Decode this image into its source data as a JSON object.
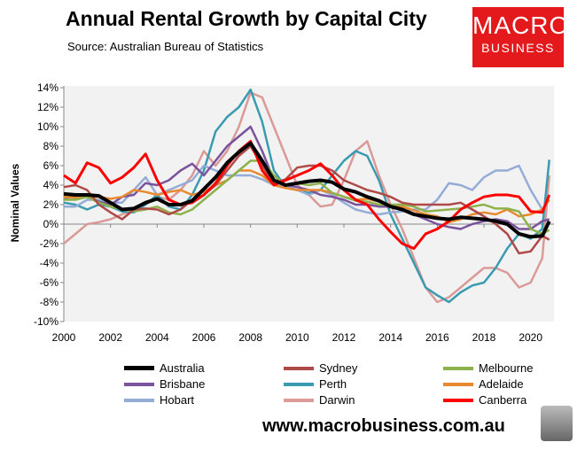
{
  "chart_data": {
    "type": "line",
    "title": "Annual Rental Growth by Capital City",
    "subtitle": "Source: Australian Bureau of Statistics",
    "ylabel": "Nominal Values",
    "xlabel": "",
    "ylim": [
      -10,
      14
    ],
    "xlim": [
      2000,
      2021
    ],
    "yticks": [
      "14%",
      "12%",
      "10%",
      "8%",
      "6%",
      "4%",
      "2%",
      "0%",
      "-2%",
      "-4%",
      "-6%",
      "-8%",
      "-10%"
    ],
    "xticks": [
      "2000",
      "2002",
      "2004",
      "2006",
      "2008",
      "2010",
      "2012",
      "2014",
      "2016",
      "2018",
      "2020"
    ],
    "legend_position": "bottom",
    "x": [
      2000,
      2000.5,
      2001,
      2001.5,
      2002,
      2002.5,
      2003,
      2003.5,
      2004,
      2004.5,
      2005,
      2005.5,
      2006,
      2006.5,
      2007,
      2007.5,
      2008,
      2008.5,
      2009,
      2009.5,
      2010,
      2010.5,
      2011,
      2011.5,
      2012,
      2012.5,
      2013,
      2013.5,
      2014,
      2014.5,
      2015,
      2015.5,
      2016,
      2016.5,
      2017,
      2017.5,
      2018,
      2018.5,
      2019,
      2019.5,
      2020,
      2020.5,
      2020.8
    ],
    "series": [
      {
        "name": "Australia",
        "color": "#000000",
        "width": 4,
        "values": [
          3.1,
          3.0,
          3.0,
          2.9,
          2.2,
          1.5,
          1.6,
          2.2,
          2.6,
          2.0,
          2.0,
          2.4,
          3.6,
          4.8,
          6.3,
          7.4,
          8.3,
          6.5,
          4.5,
          4.0,
          4.2,
          4.4,
          4.5,
          4.3,
          3.6,
          3.3,
          2.8,
          2.4,
          1.8,
          1.5,
          1.0,
          0.8,
          0.6,
          0.5,
          0.7,
          0.6,
          0.5,
          0.3,
          0.0,
          -1.0,
          -1.3,
          -1.2,
          0.3
        ]
      },
      {
        "name": "Sydney",
        "color": "#b04a48",
        "width": 2.5,
        "values": [
          3.8,
          4.0,
          3.5,
          2.0,
          1.2,
          0.5,
          1.5,
          1.6,
          1.5,
          1.0,
          1.5,
          2.5,
          3.0,
          4.0,
          5.5,
          7.0,
          8.0,
          6.0,
          4.2,
          4.6,
          5.8,
          6.0,
          6.0,
          5.5,
          4.5,
          4.0,
          3.5,
          3.2,
          2.8,
          2.2,
          2.0,
          2.0,
          2.0,
          2.0,
          2.2,
          1.5,
          0.8,
          0.0,
          -1.0,
          -3.0,
          -2.8,
          -1.2,
          -1.6
        ]
      },
      {
        "name": "Melbourne",
        "color": "#8db24c",
        "width": 2.5,
        "values": [
          2.5,
          2.5,
          2.8,
          2.2,
          1.8,
          1.5,
          1.3,
          1.5,
          1.8,
          1.2,
          1.0,
          1.5,
          2.5,
          3.5,
          4.5,
          5.5,
          6.5,
          6.5,
          5.0,
          4.0,
          4.2,
          4.0,
          4.2,
          3.2,
          2.8,
          2.4,
          2.3,
          2.0,
          2.0,
          2.0,
          1.8,
          1.3,
          1.4,
          1.5,
          1.6,
          1.8,
          2.0,
          1.6,
          1.6,
          1.3,
          -0.5,
          -1.0,
          -0.6
        ]
      },
      {
        "name": "Brisbane",
        "color": "#7a539c",
        "width": 2.5,
        "values": [
          2.5,
          3.0,
          2.8,
          2.3,
          2.0,
          2.8,
          3.0,
          4.2,
          4.0,
          4.5,
          5.5,
          6.2,
          5.0,
          6.5,
          8.0,
          9.0,
          10.0,
          7.5,
          4.5,
          4.0,
          3.8,
          3.5,
          3.0,
          2.8,
          2.5,
          2.0,
          2.0,
          1.8,
          1.8,
          1.5,
          1.0,
          0.5,
          0.0,
          -0.3,
          -0.5,
          0.0,
          0.3,
          0.5,
          0.3,
          -0.5,
          -0.5,
          0.3,
          0.5
        ]
      },
      {
        "name": "Perth",
        "color": "#3a9bb0",
        "width": 2.5,
        "values": [
          2.2,
          2.0,
          1.5,
          2.0,
          1.8,
          1.3,
          1.2,
          2.0,
          3.0,
          1.8,
          1.5,
          3.0,
          5.5,
          9.5,
          11.0,
          12.0,
          13.8,
          10.5,
          5.5,
          3.8,
          3.5,
          3.2,
          3.5,
          5.0,
          6.5,
          7.5,
          7.0,
          4.5,
          1.0,
          -1.5,
          -4.0,
          -6.5,
          -7.3,
          -8.0,
          -7.0,
          -6.3,
          -6.0,
          -4.5,
          -2.5,
          -1.0,
          -1.5,
          -0.5,
          6.6
        ]
      },
      {
        "name": "Adelaide",
        "color": "#e8892f",
        "width": 2.5,
        "values": [
          2.8,
          2.7,
          2.8,
          2.8,
          2.6,
          2.8,
          3.5,
          3.3,
          3.0,
          3.3,
          3.5,
          3.0,
          3.3,
          4.0,
          4.5,
          5.5,
          5.5,
          5.0,
          4.0,
          3.7,
          3.5,
          3.5,
          3.5,
          3.2,
          2.8,
          2.5,
          2.6,
          2.3,
          2.0,
          1.8,
          1.4,
          1.0,
          0.8,
          0.2,
          0.5,
          1.0,
          1.2,
          1.0,
          1.5,
          0.8,
          1.0,
          1.5,
          2.5
        ]
      },
      {
        "name": "Hobart",
        "color": "#94acd6",
        "width": 2.5,
        "values": [
          1.8,
          1.8,
          2.5,
          2.5,
          2.2,
          2.2,
          3.5,
          4.8,
          3.0,
          3.5,
          4.0,
          4.5,
          6.0,
          5.5,
          5.0,
          5.0,
          5.0,
          4.6,
          4.0,
          3.8,
          3.5,
          3.0,
          3.5,
          3.0,
          2.2,
          1.5,
          1.2,
          1.0,
          1.2,
          1.3,
          1.5,
          1.5,
          2.5,
          4.2,
          4.0,
          3.5,
          4.8,
          5.5,
          5.5,
          6.0,
          3.5,
          1.5,
          2.5
        ]
      },
      {
        "name": "Darwin",
        "color": "#d99a98",
        "width": 2.5,
        "values": [
          -2.0,
          -1.0,
          0.0,
          0.2,
          0.5,
          1.0,
          1.5,
          2.0,
          2.8,
          2.5,
          3.5,
          5.0,
          7.5,
          6.0,
          7.5,
          10.0,
          13.5,
          13.0,
          10.0,
          7.0,
          4.0,
          3.0,
          1.8,
          2.0,
          4.5,
          7.5,
          8.5,
          5.0,
          2.0,
          -0.5,
          -3.5,
          -6.5,
          -8.0,
          -7.5,
          -6.5,
          -5.5,
          -4.5,
          -4.5,
          -5.0,
          -6.5,
          -6.0,
          -3.5,
          5.0
        ]
      },
      {
        "name": "Canberra",
        "color": "#ff0000",
        "width": 3,
        "values": [
          5.0,
          4.2,
          6.3,
          5.8,
          4.2,
          4.8,
          5.8,
          7.2,
          4.5,
          2.5,
          2.0,
          2.2,
          3.0,
          4.2,
          6.0,
          7.5,
          8.5,
          5.5,
          4.0,
          4.5,
          5.0,
          5.5,
          6.2,
          5.0,
          3.5,
          2.5,
          2.0,
          0.5,
          -0.8,
          -2.0,
          -2.5,
          -1.0,
          -0.5,
          0.3,
          1.5,
          2.2,
          2.8,
          3.0,
          3.0,
          2.8,
          1.3,
          1.2,
          3.0
        ]
      }
    ]
  },
  "logo": {
    "line1": "MACRO",
    "line2": "BUSINESS"
  },
  "website": "www.macrobusiness.com.au"
}
